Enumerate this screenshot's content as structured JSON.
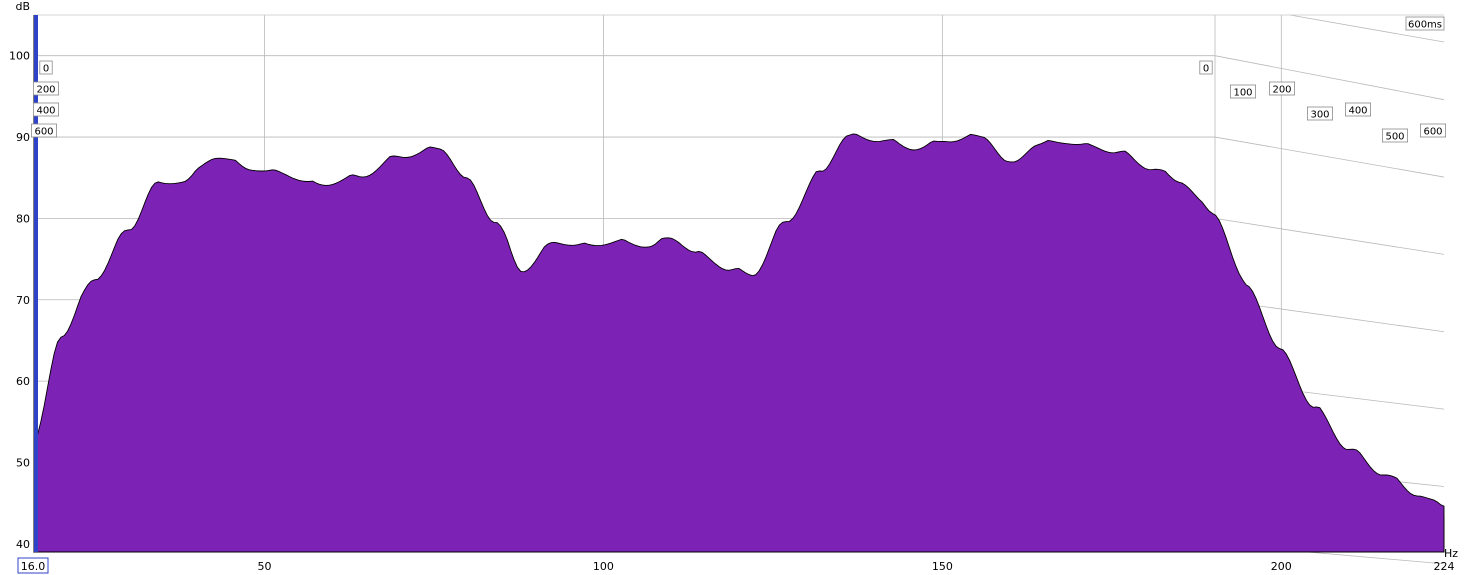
{
  "chart_data": {
    "type": "area",
    "style": "waterfall",
    "y_unit": "dB",
    "x_unit": "Hz",
    "x_start_label": "16.0",
    "x_end_label": "224",
    "xlim": [
      16,
      224
    ],
    "ylim": [
      39,
      105
    ],
    "x_ticks": [
      50,
      100,
      150,
      200
    ],
    "y_ticks": [
      40,
      50,
      60,
      70,
      80,
      90,
      100
    ],
    "time_labels_left": [
      "0",
      "200",
      "400",
      "600"
    ],
    "time_labels_right": [
      "0",
      "100",
      "200",
      "300",
      "400",
      "500",
      "600"
    ],
    "time_end_label": "600ms",
    "time_range_ms": [
      0,
      600
    ],
    "slice_count": 36,
    "fill_color": "#7c22b4",
    "line_color": "#000000",
    "front_slice": {
      "time_ms": 0,
      "x": [
        16,
        20,
        25,
        30,
        34,
        38,
        43,
        48,
        52,
        58,
        64,
        70,
        76,
        80,
        84,
        88,
        93,
        97,
        102,
        107,
        110,
        114,
        119,
        122,
        127,
        132,
        136,
        141,
        146,
        151,
        156,
        160,
        164,
        168,
        172,
        176,
        181,
        185,
        190,
        195,
        200,
        205,
        210,
        215,
        220,
        224
      ],
      "y": [
        53,
        66,
        73,
        79,
        84.5,
        85,
        88,
        86.5,
        86,
        84.5,
        85.5,
        88,
        89,
        85,
        80,
        74,
        77.5,
        77,
        77.5,
        77,
        78,
        76,
        74,
        73.5,
        80,
        86,
        90.5,
        90,
        89,
        90,
        90.5,
        87,
        89.5,
        89.8,
        89.2,
        88.5,
        86.5,
        85,
        81,
        72,
        64,
        57,
        52,
        49,
        46.5,
        45
      ]
    }
  }
}
